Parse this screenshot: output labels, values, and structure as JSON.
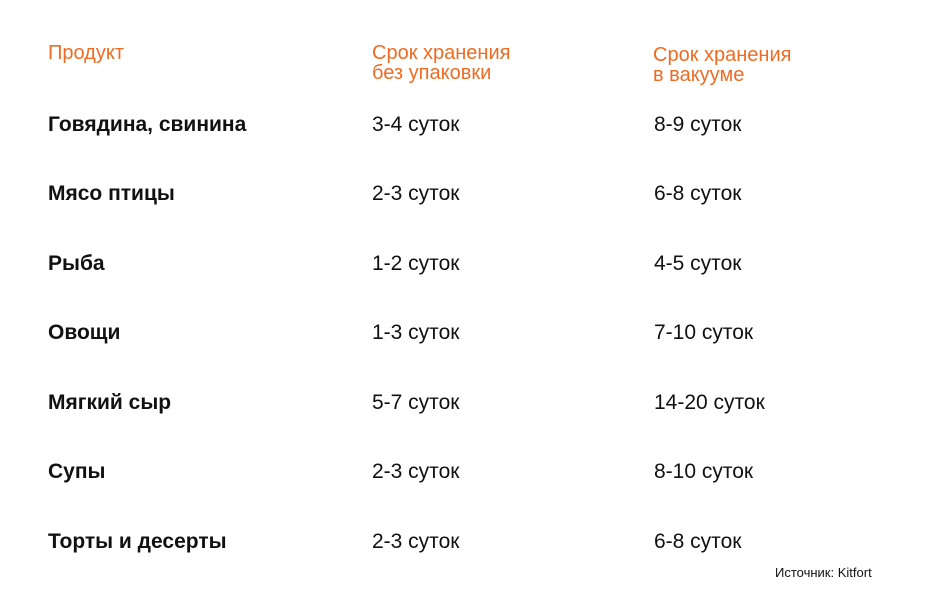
{
  "headers": {
    "product": "Продукт",
    "no_pack_line1": "Срок хранения",
    "no_pack_line2": "без упаковки",
    "vacuum_line1": "Срок хранения",
    "vacuum_line2": "в вакууме"
  },
  "rows": [
    {
      "product": "Говядина, свинина",
      "no_pack": "3-4 суток",
      "vacuum": "8-9 суток"
    },
    {
      "product": "Мясо птицы",
      "no_pack": "2-3 суток",
      "vacuum": "6-8 суток"
    },
    {
      "product": "Рыба",
      "no_pack": "1-2 суток",
      "vacuum": "4-5 суток"
    },
    {
      "product": "Овощи",
      "no_pack": "1-3 суток",
      "vacuum": "7-10 суток"
    },
    {
      "product": "Мягкий сыр",
      "no_pack": "5-7 суток",
      "vacuum": "14-20 суток"
    },
    {
      "product": "Супы",
      "no_pack": "2-3 суток",
      "vacuum": "8-10 суток"
    },
    {
      "product": "Торты и десерты",
      "no_pack": "2-3 суток",
      "vacuum": "6-8 суток"
    }
  ],
  "source": "Источник: Kitfort",
  "colors": {
    "accent": "#f26a21",
    "text": "#111111",
    "background": "#ffffff"
  }
}
